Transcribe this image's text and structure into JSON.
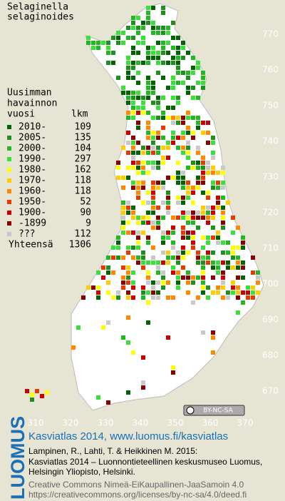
{
  "title_lines": [
    "Selaginella",
    "selaginoides"
  ],
  "legend": {
    "heading_lines": [
      "Uusimman",
      "havainnon",
      "vuosi"
    ],
    "count_heading": "lkm",
    "rows": [
      {
        "label": "2010-",
        "count": 109,
        "color": "#006400"
      },
      {
        "label": "2005-",
        "count": 135,
        "color": "#1f8f1f"
      },
      {
        "label": "2000-",
        "count": 104,
        "color": "#22b822"
      },
      {
        "label": "1990-",
        "count": 297,
        "color": "#3ae03a"
      },
      {
        "label": "1980-",
        "count": 162,
        "color": "#ffff00"
      },
      {
        "label": "1970-",
        "count": 118,
        "color": "#ffcc00"
      },
      {
        "label": "1960-",
        "count": 118,
        "color": "#ff8800"
      },
      {
        "label": "1950-",
        "count": 52,
        "color": "#e83a00"
      },
      {
        "label": "1900-",
        "count": 90,
        "color": "#cc0000"
      },
      {
        "label": "-1899",
        "count": 9,
        "color": "#880000"
      },
      {
        "label": "???",
        "count": 112,
        "color": "#c8c8c8"
      }
    ],
    "total_label": "Yhteensä",
    "total": 1306
  },
  "axes": {
    "y_ticks": [
      770,
      760,
      750,
      740,
      730,
      720,
      710,
      700,
      690,
      680,
      670
    ],
    "x_ticks": [
      310,
      320,
      330,
      340,
      350,
      360,
      370
    ]
  },
  "badge": "BY-NC-SA",
  "side_logo": "LUOMUS",
  "footer": {
    "source": "Kasviatlas 2014, www.luomus.fi/kasviatlas",
    "citation_lines": [
      "Lampinen, R., Lahti, T. & Heikkinen M. 2015:",
      "Kasviatlas 2014 – Luonnontieteellinen keskusmuseo Luomus,",
      "Helsingin Yliopisto, Helsinki."
    ],
    "license_lines": [
      "Creative Commons Nimeä-EiKaupallinen-JaaSamoin 4.0",
      "https://creativecommons.org/licenses/by-nc-sa/4.0/deed.fi"
    ]
  }
}
